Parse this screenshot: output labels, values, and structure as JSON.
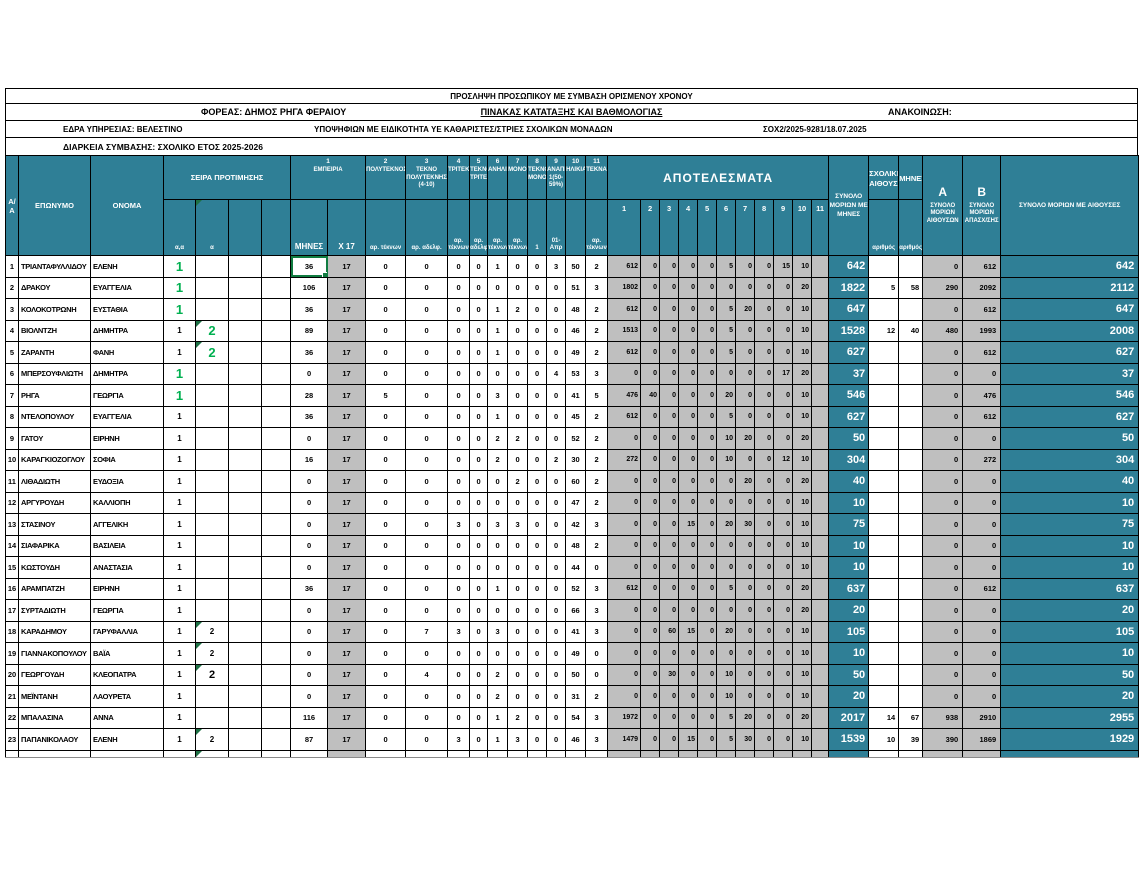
{
  "titles": {
    "line1": "ΠΡΟΣΛΗΨΗ ΠΡΟΣΩΠΙΚΟΥ ΜΕ ΣΥΜΒΑΣΗ ΟΡΙΣΜΕΝΟΥ ΧΡΟΝΟΥ",
    "foreas": "ΦΟΡΕΑΣ: ΔΗΜΟΣ ΡΗΓΑ ΦΕΡΑΙΟΥ",
    "pinakas": "ΠΙΝΑΚΑΣ ΚΑΤΑΤΑΞΗΣ ΚΑΙ ΒΑΘΜΟΛΟΓΙΑΣ",
    "anakoinosi": "ΑΝΑΚΟΙΝΩΣΗ:",
    "edra": "ΕΔΡΑ ΥΠΗΡΕΣΙΑΣ: ΒΕΛΕΣΤΙΝΟ",
    "ypopsifion": "ΥΠΟΨΗΦΙΩΝ ΜΕ ΕΙΔΙΚΟΤΗΤΑ ΥΕ ΚΑΘΑΡΙΣΤΕΣ/ΣΤΡΙΕΣ ΣΧΟΛΙΚΩΝ ΜΟΝΑΔΩΝ",
    "sox": "ΣΟΧ2/2025-9281/18.07.2025",
    "diarkeia": "ΔΙΑΡΚΕΙΑ ΣΥΜΒΑΣΗΣ: ΣΧΟΛΙΚΟ ΕΤΟΣ 2025-2026"
  },
  "colors": {
    "header_teal": "#2F7F96",
    "cell_gray": "#BFBFBF",
    "pref_green": "#00B050",
    "selection_green": "#107C41"
  },
  "header": {
    "aa": "Α/Α",
    "surname": "ΕΠΩΝΥΜΟ",
    "name": "ΟΝΟΜΑ",
    "pref": "ΣΕΙΡΑ ΠΡΟΤΙΜΗΣΗΣ",
    "pref_subs": [
      "α,α",
      "α",
      "",
      ""
    ],
    "criteria": [
      {
        "num": "1",
        "label": "ΕΜΠΕΙΡΙΑ",
        "subs": [
          "ΜΗΝΕΣ",
          "Χ 17"
        ]
      },
      {
        "num": "2",
        "label": "ΠΟΛΥΤΕΚΝΟΣ",
        "sub": "αρ. τέκνων"
      },
      {
        "num": "3",
        "label": "ΤΕΚΝΟ ΠΟΛΥΤΕΚΝΗΣ (4-10)",
        "sub": "αρ. αδελφ."
      },
      {
        "num": "4",
        "label": "ΤΡΙΤΕΚΝΟΣ",
        "sub": "αρ. τέκνων"
      },
      {
        "num": "5",
        "label": "ΤΕΚΝΟ ΤΡΙΤΕΚΝΗΣ",
        "sub": "αρ. αδελφ."
      },
      {
        "num": "6",
        "label": "ΑΝΗΛΙΚΑ",
        "sub": "αρ. τέκνων"
      },
      {
        "num": "7",
        "label": "ΜΟΝΟΓΟΝΕΙΚΗ",
        "sub": "αρ. τέκνων"
      },
      {
        "num": "8",
        "label": "ΤΕΚΝΟ ΜΟΝΟΓΟΝΕΙΚΗΣ",
        "sub": "1"
      },
      {
        "num": "9",
        "label": "ΑΝΑΠΗΡΙΑ 1(50-59%)",
        "sub": "01-Απρ"
      },
      {
        "num": "10",
        "label": "ΗΛΙΚΙΑ",
        "sub": ""
      },
      {
        "num": "11",
        "label": "ΤΕΚΝΑ",
        "sub": "αρ. τέκνων"
      }
    ],
    "results_label": "ΑΠΟΤΕΛΕΣΜΑΤΑ",
    "results_cols": [
      "1",
      "2",
      "3",
      "4",
      "5",
      "6",
      "7",
      "8",
      "9",
      "10",
      "11"
    ],
    "total": "ΣΥΝΟΛΟ ΜΟΡΙΩΝ ΜΕ ΜΗΝΕΣ",
    "rooms": "ΣΧΟΛΙΚΕΣ ΑΙΘΟΥΣΕΣ",
    "rooms_sub": "αριθμός",
    "months2": "ΜΗΝΕΣ",
    "months2_sub": "αριθμός",
    "a_letter": "Α",
    "a_label": "ΣΥΝΟΛΟ ΜΟΡΙΩΝ ΑΙΘΟΥΣΩΝ",
    "b_letter": "Β",
    "b_label": "ΣΥΝΟΛΟ ΜΟΡΙΩΝ ΑΠΑΣΧ/ΣΗΣ",
    "final": "ΣΥΝΟΛΟ ΜΟΡΙΩΝ ΜΕ ΑΙΘΟΥΣΕΣ"
  },
  "rows": [
    {
      "n": "1",
      "surname": "ΤΡΙΑΝΤΑΦΥΛΛΙΔΟΥ",
      "name": "ΕΛΕΝΗ",
      "p1": "1",
      "p1s": "green",
      "p2": "",
      "p2s": "",
      "tri": false,
      "months": "36",
      "x17": "17",
      "active": true,
      "criteria": [
        "0",
        "0",
        "0",
        "0",
        "1",
        "0",
        "0",
        "3",
        "50",
        "2"
      ],
      "results": [
        "612",
        "0",
        "0",
        "0",
        "0",
        "5",
        "0",
        "0",
        "15",
        "10",
        ""
      ],
      "total": "642",
      "rooms": "",
      "rmonths": "",
      "a": "0",
      "b": "612",
      "final": "642"
    },
    {
      "n": "2",
      "surname": "ΔΡΑΚΟΥ",
      "name": "ΕΥΑΓΓΕΛΙΑ",
      "p1": "1",
      "p1s": "green",
      "p2": "",
      "p2s": "",
      "tri": false,
      "months": "106",
      "x17": "17",
      "active": false,
      "criteria": [
        "0",
        "0",
        "0",
        "0",
        "0",
        "0",
        "0",
        "0",
        "51",
        "3"
      ],
      "results": [
        "1802",
        "0",
        "0",
        "0",
        "0",
        "0",
        "0",
        "0",
        "0",
        "20",
        ""
      ],
      "total": "1822",
      "rooms": "5",
      "rmonths": "58",
      "a": "290",
      "b": "2092",
      "final": "2112"
    },
    {
      "n": "3",
      "surname": "ΚΟΛΟΚΟΤΡΩΝΗ",
      "name": "ΕΥΣΤΑΘΙΑ",
      "p1": "1",
      "p1s": "green",
      "p2": "",
      "p2s": "",
      "tri": false,
      "months": "36",
      "x17": "17",
      "active": false,
      "criteria": [
        "0",
        "0",
        "0",
        "0",
        "1",
        "2",
        "0",
        "0",
        "48",
        "2"
      ],
      "results": [
        "612",
        "0",
        "0",
        "0",
        "0",
        "5",
        "20",
        "0",
        "0",
        "10",
        ""
      ],
      "total": "647",
      "rooms": "",
      "rmonths": "",
      "a": "0",
      "b": "612",
      "final": "647"
    },
    {
      "n": "4",
      "surname": "ΒΙΟΛΝΤΖΗ",
      "name": "ΔΗΜΗΤΡΑ",
      "p1": "1",
      "p1s": "normal",
      "p2": "2",
      "p2s": "green",
      "tri": true,
      "months": "89",
      "x17": "17",
      "active": false,
      "criteria": [
        "0",
        "0",
        "0",
        "0",
        "1",
        "0",
        "0",
        "0",
        "46",
        "2"
      ],
      "results": [
        "1513",
        "0",
        "0",
        "0",
        "0",
        "5",
        "0",
        "0",
        "0",
        "10",
        ""
      ],
      "total": "1528",
      "rooms": "12",
      "rmonths": "40",
      "a": "480",
      "b": "1993",
      "final": "2008"
    },
    {
      "n": "5",
      "surname": "ΖΑΡΑΝΤΗ",
      "name": "ΦΑΝΗ",
      "p1": "1",
      "p1s": "normal",
      "p2": "2",
      "p2s": "green",
      "tri": true,
      "months": "36",
      "x17": "17",
      "active": false,
      "criteria": [
        "0",
        "0",
        "0",
        "0",
        "1",
        "0",
        "0",
        "0",
        "49",
        "2"
      ],
      "results": [
        "612",
        "0",
        "0",
        "0",
        "0",
        "5",
        "0",
        "0",
        "0",
        "10",
        ""
      ],
      "total": "627",
      "rooms": "",
      "rmonths": "",
      "a": "0",
      "b": "612",
      "final": "627"
    },
    {
      "n": "6",
      "surname": "ΜΠΕΡΣΟΥΦΛΙΩΤΗ",
      "name": "ΔΗΜΗΤΡΑ",
      "p1": "1",
      "p1s": "green",
      "p2": "",
      "p2s": "",
      "tri": false,
      "months": "0",
      "x17": "17",
      "active": false,
      "criteria": [
        "0",
        "0",
        "0",
        "0",
        "0",
        "0",
        "0",
        "4",
        "53",
        "3"
      ],
      "results": [
        "0",
        "0",
        "0",
        "0",
        "0",
        "0",
        "0",
        "0",
        "17",
        "20",
        ""
      ],
      "total": "37",
      "rooms": "",
      "rmonths": "",
      "a": "0",
      "b": "0",
      "final": "37"
    },
    {
      "n": "7",
      "surname": "ΡΗΓΑ",
      "name": "ΓΕΩΡΓΙΑ",
      "p1": "1",
      "p1s": "green",
      "p2": "",
      "p2s": "",
      "tri": false,
      "months": "28",
      "x17": "17",
      "active": false,
      "criteria": [
        "5",
        "0",
        "0",
        "0",
        "3",
        "0",
        "0",
        "0",
        "41",
        "5"
      ],
      "results": [
        "476",
        "40",
        "0",
        "0",
        "0",
        "20",
        "0",
        "0",
        "0",
        "10",
        ""
      ],
      "total": "546",
      "rooms": "",
      "rmonths": "",
      "a": "0",
      "b": "476",
      "final": "546"
    },
    {
      "n": "8",
      "surname": "ΝΤΕΛΟΠΟΥΛΟΥ",
      "name": "ΕΥΑΓΓΕΛΙΑ",
      "p1": "1",
      "p1s": "normal",
      "p2": "",
      "p2s": "",
      "tri": false,
      "months": "36",
      "x17": "17",
      "active": false,
      "criteria": [
        "0",
        "0",
        "0",
        "0",
        "1",
        "0",
        "0",
        "0",
        "45",
        "2"
      ],
      "results": [
        "612",
        "0",
        "0",
        "0",
        "0",
        "5",
        "0",
        "0",
        "0",
        "10",
        ""
      ],
      "total": "627",
      "rooms": "",
      "rmonths": "",
      "a": "0",
      "b": "612",
      "final": "627"
    },
    {
      "n": "9",
      "surname": "ΓΑΤΟΥ",
      "name": "ΕΙΡΗΝΗ",
      "p1": "1",
      "p1s": "normal",
      "p2": "",
      "p2s": "",
      "tri": false,
      "months": "0",
      "x17": "17",
      "active": false,
      "criteria": [
        "0",
        "0",
        "0",
        "0",
        "2",
        "2",
        "0",
        "0",
        "52",
        "2"
      ],
      "results": [
        "0",
        "0",
        "0",
        "0",
        "0",
        "10",
        "20",
        "0",
        "0",
        "20",
        ""
      ],
      "total": "50",
      "rooms": "",
      "rmonths": "",
      "a": "0",
      "b": "0",
      "final": "50"
    },
    {
      "n": "10",
      "surname": "ΚΑΡΑΓΚΙΟΖΟΓΛΟΥ",
      "name": "ΣΟΦΙΑ",
      "p1": "1",
      "p1s": "normal",
      "p2": "",
      "p2s": "",
      "tri": false,
      "months": "16",
      "x17": "17",
      "active": false,
      "criteria": [
        "0",
        "0",
        "0",
        "0",
        "2",
        "0",
        "0",
        "2",
        "30",
        "2"
      ],
      "results": [
        "272",
        "0",
        "0",
        "0",
        "0",
        "10",
        "0",
        "0",
        "12",
        "10",
        ""
      ],
      "total": "304",
      "rooms": "",
      "rmonths": "",
      "a": "0",
      "b": "272",
      "final": "304"
    },
    {
      "n": "11",
      "surname": "ΛΙΘΑΔΙΩΤΗ",
      "name": "ΕΥΔΟΞΙΑ",
      "p1": "1",
      "p1s": "normal",
      "p2": "",
      "p2s": "",
      "tri": false,
      "months": "0",
      "x17": "17",
      "active": false,
      "criteria": [
        "0",
        "0",
        "0",
        "0",
        "0",
        "2",
        "0",
        "0",
        "60",
        "2"
      ],
      "results": [
        "0",
        "0",
        "0",
        "0",
        "0",
        "0",
        "20",
        "0",
        "0",
        "20",
        ""
      ],
      "total": "40",
      "rooms": "",
      "rmonths": "",
      "a": "0",
      "b": "0",
      "final": "40"
    },
    {
      "n": "12",
      "surname": "ΑΡΓΥΡΟΥΔΗ",
      "name": "ΚΑΛΛΙΟΠΗ",
      "p1": "1",
      "p1s": "normal",
      "p2": "",
      "p2s": "",
      "tri": false,
      "months": "0",
      "x17": "17",
      "active": false,
      "criteria": [
        "0",
        "0",
        "0",
        "0",
        "0",
        "0",
        "0",
        "0",
        "47",
        "2"
      ],
      "results": [
        "0",
        "0",
        "0",
        "0",
        "0",
        "0",
        "0",
        "0",
        "0",
        "10",
        ""
      ],
      "total": "10",
      "rooms": "",
      "rmonths": "",
      "a": "0",
      "b": "0",
      "final": "10"
    },
    {
      "n": "13",
      "surname": "ΣΤΑΣΙΝΟΥ",
      "name": "ΑΓΓΕΛΙΚΗ",
      "p1": "1",
      "p1s": "normal",
      "p2": "",
      "p2s": "",
      "tri": false,
      "months": "0",
      "x17": "17",
      "active": false,
      "criteria": [
        "0",
        "0",
        "3",
        "0",
        "3",
        "3",
        "0",
        "0",
        "42",
        "3"
      ],
      "results": [
        "0",
        "0",
        "0",
        "15",
        "0",
        "20",
        "30",
        "0",
        "0",
        "10",
        ""
      ],
      "total": "75",
      "rooms": "",
      "rmonths": "",
      "a": "0",
      "b": "0",
      "final": "75"
    },
    {
      "n": "14",
      "surname": "ΣΙΑΦΑΡΙΚΑ",
      "name": "ΒΑΣΙΛΕΙΑ",
      "p1": "1",
      "p1s": "normal",
      "p2": "",
      "p2s": "",
      "tri": false,
      "months": "0",
      "x17": "17",
      "active": false,
      "criteria": [
        "0",
        "0",
        "0",
        "0",
        "0",
        "0",
        "0",
        "0",
        "48",
        "2"
      ],
      "results": [
        "0",
        "0",
        "0",
        "0",
        "0",
        "0",
        "0",
        "0",
        "0",
        "10",
        ""
      ],
      "total": "10",
      "rooms": "",
      "rmonths": "",
      "a": "0",
      "b": "0",
      "final": "10"
    },
    {
      "n": "15",
      "surname": "ΚΩΣΤΟΥΔΗ",
      "name": "ΑΝΑΣΤΑΣΙΑ",
      "p1": "1",
      "p1s": "normal",
      "p2": "",
      "p2s": "",
      "tri": false,
      "months": "0",
      "x17": "17",
      "active": false,
      "criteria": [
        "0",
        "0",
        "0",
        "0",
        "0",
        "0",
        "0",
        "0",
        "44",
        "0"
      ],
      "results": [
        "0",
        "0",
        "0",
        "0",
        "0",
        "0",
        "0",
        "0",
        "0",
        "10",
        ""
      ],
      "total": "10",
      "rooms": "",
      "rmonths": "",
      "a": "0",
      "b": "0",
      "final": "10"
    },
    {
      "n": "16",
      "surname": "ΑΡΑΜΠΑΤΖΗ",
      "name": "ΕΙΡΗΝΗ",
      "p1": "1",
      "p1s": "normal",
      "p2": "",
      "p2s": "",
      "tri": false,
      "months": "36",
      "x17": "17",
      "active": false,
      "criteria": [
        "0",
        "0",
        "0",
        "0",
        "1",
        "0",
        "0",
        "0",
        "52",
        "3"
      ],
      "results": [
        "612",
        "0",
        "0",
        "0",
        "0",
        "5",
        "0",
        "0",
        "0",
        "20",
        ""
      ],
      "total": "637",
      "rooms": "",
      "rmonths": "",
      "a": "0",
      "b": "612",
      "final": "637"
    },
    {
      "n": "17",
      "surname": "ΣΥΡΤΑΔΙΩΤΗ",
      "name": "ΓΕΩΡΓΙΑ",
      "p1": "1",
      "p1s": "normal",
      "p2": "",
      "p2s": "",
      "tri": false,
      "months": "0",
      "x17": "17",
      "active": false,
      "criteria": [
        "0",
        "0",
        "0",
        "0",
        "0",
        "0",
        "0",
        "0",
        "66",
        "3"
      ],
      "results": [
        "0",
        "0",
        "0",
        "0",
        "0",
        "0",
        "0",
        "0",
        "0",
        "20",
        ""
      ],
      "total": "20",
      "rooms": "",
      "rmonths": "",
      "a": "0",
      "b": "0",
      "final": "20"
    },
    {
      "n": "18",
      "surname": "ΚΑΡΑΔΗΜΟΥ",
      "name": "ΓΑΡΥΦΑΛΛΙΑ",
      "p1": "1",
      "p1s": "normal",
      "p2": "2",
      "p2s": "small",
      "tri": true,
      "months": "0",
      "x17": "17",
      "active": false,
      "criteria": [
        "0",
        "7",
        "3",
        "0",
        "3",
        "0",
        "0",
        "0",
        "41",
        "3"
      ],
      "results": [
        "0",
        "0",
        "60",
        "15",
        "0",
        "20",
        "0",
        "0",
        "0",
        "10",
        ""
      ],
      "total": "105",
      "rooms": "",
      "rmonths": "",
      "a": "0",
      "b": "0",
      "final": "105"
    },
    {
      "n": "19",
      "surname": "ΓΙΑΝΝΑΚΟΠΟΥΛΟΥ",
      "name": "ΒΑΪΑ",
      "p1": "1",
      "p1s": "normal",
      "p2": "2",
      "p2s": "small",
      "tri": true,
      "months": "0",
      "x17": "17",
      "active": false,
      "criteria": [
        "0",
        "0",
        "0",
        "0",
        "0",
        "0",
        "0",
        "0",
        "49",
        "0"
      ],
      "results": [
        "0",
        "0",
        "0",
        "0",
        "0",
        "0",
        "0",
        "0",
        "0",
        "10",
        ""
      ],
      "total": "10",
      "rooms": "",
      "rmonths": "",
      "a": "0",
      "b": "0",
      "final": "10"
    },
    {
      "n": "20",
      "surname": "ΓΕΩΡΓΟΥΔΗ",
      "name": "ΚΛΕΟΠΑΤΡΑ",
      "p1": "1",
      "p1s": "normal",
      "p2": "2",
      "p2s": "big",
      "tri": true,
      "months": "0",
      "x17": "17",
      "active": false,
      "criteria": [
        "0",
        "4",
        "0",
        "0",
        "2",
        "0",
        "0",
        "0",
        "50",
        "0"
      ],
      "results": [
        "0",
        "0",
        "30",
        "0",
        "0",
        "10",
        "0",
        "0",
        "0",
        "10",
        ""
      ],
      "total": "50",
      "rooms": "",
      "rmonths": "",
      "a": "0",
      "b": "0",
      "final": "50"
    },
    {
      "n": "21",
      "surname": "ΜΕΪΝΤΑΝΗ",
      "name": "ΛΑΟΥΡΕΤΑ",
      "p1": "1",
      "p1s": "normal",
      "p2": "",
      "p2s": "",
      "tri": false,
      "months": "0",
      "x17": "17",
      "active": false,
      "criteria": [
        "0",
        "0",
        "0",
        "0",
        "2",
        "0",
        "0",
        "0",
        "31",
        "2"
      ],
      "results": [
        "0",
        "0",
        "0",
        "0",
        "0",
        "10",
        "0",
        "0",
        "0",
        "10",
        ""
      ],
      "total": "20",
      "rooms": "",
      "rmonths": "",
      "a": "0",
      "b": "0",
      "final": "20"
    },
    {
      "n": "22",
      "surname": "ΜΠΑΛΑΣΙΝΑ",
      "name": "ΑΝΝΑ",
      "p1": "1",
      "p1s": "normal",
      "p2": "",
      "p2s": "",
      "tri": false,
      "months": "116",
      "x17": "17",
      "active": false,
      "criteria": [
        "0",
        "0",
        "0",
        "0",
        "1",
        "2",
        "0",
        "0",
        "54",
        "3"
      ],
      "results": [
        "1972",
        "0",
        "0",
        "0",
        "0",
        "5",
        "20",
        "0",
        "0",
        "20",
        ""
      ],
      "total": "2017",
      "rooms": "14",
      "rmonths": "67",
      "a": "938",
      "b": "2910",
      "final": "2955"
    },
    {
      "n": "23",
      "surname": "ΠΑΠΑΝΙΚΟΛΑΟΥ",
      "name": "ΕΛΕΝΗ",
      "p1": "1",
      "p1s": "normal",
      "p2": "2",
      "p2s": "small",
      "tri": true,
      "months": "87",
      "x17": "17",
      "active": false,
      "criteria": [
        "0",
        "0",
        "3",
        "0",
        "1",
        "3",
        "0",
        "0",
        "46",
        "3"
      ],
      "results": [
        "1479",
        "0",
        "0",
        "15",
        "0",
        "5",
        "30",
        "0",
        "0",
        "10",
        ""
      ],
      "total": "1539",
      "rooms": "10",
      "rmonths": "39",
      "a": "390",
      "b": "1869",
      "final": "1929"
    }
  ],
  "partial_next_row": {
    "visible": true,
    "tri_p2": true
  }
}
